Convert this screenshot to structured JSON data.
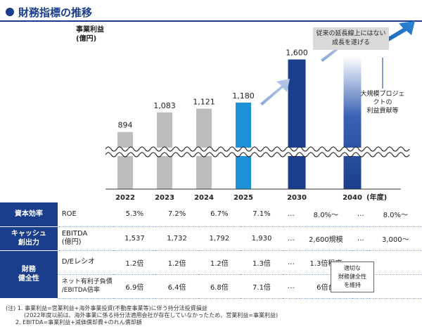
{
  "title": "財務指標の推移",
  "unit_label": [
    "事業利益",
    "(億円)"
  ],
  "note_box": [
    "従来の延長線上にはない",
    "成長を遂げる"
  ],
  "callout": [
    "大規模プロジェクトの",
    "利益貢献等"
  ],
  "axis_suffix": "(年度)",
  "chart_data": {
    "type": "bar",
    "categories": [
      "2022",
      "2023",
      "2024",
      "2025",
      "2030",
      "2040"
    ],
    "values": [
      894,
      1083,
      1121,
      1180,
      1600,
      null
    ],
    "labels": [
      "894",
      "1,083",
      "1,121",
      "1,180",
      "1,600",
      ""
    ],
    "colors": [
      "#bdbdbd",
      "#bdbdbd",
      "#bdbdbd",
      "#1e90d6",
      "#1a3e8c",
      "gradient-navy"
    ],
    "ylabel": "事業利益(億円)",
    "axis_break": true
  },
  "table": {
    "rows": [
      {
        "category": "資本効率",
        "metric": "ROE",
        "values": [
          "5.3%",
          "7.2%",
          "6.7%",
          "7.1%",
          "…",
          "8.0%〜",
          "…",
          "8.0%〜"
        ]
      },
      {
        "category": "キャッシュ\n創出力",
        "metric": "EBITDA\n(億円)",
        "values": [
          "1,537",
          "1,732",
          "1,792",
          "1,930",
          "…",
          "2,600規模",
          "…",
          "3,000〜"
        ]
      },
      {
        "category": "財務\n健全性",
        "metric": "D/Eレシオ",
        "values": [
          "1.2倍",
          "1.2倍",
          "1.2倍",
          "1.3倍",
          "…",
          "1.3倍程度",
          "…",
          ""
        ]
      },
      {
        "category": "",
        "metric": "ネット有利子負債\n/EBITDA倍率",
        "values": [
          "6.9倍",
          "6.4倍",
          "6.8倍",
          "7.1倍",
          "…",
          "6倍台",
          "…",
          ""
        ]
      }
    ],
    "health_box": [
      "適切な",
      "財務健全性",
      "を維持"
    ]
  },
  "notes": [
    "(注) 1. 事業利益=営業利益+海外事業投資(不動産事業等)に伴う持分法投資損益",
    "(2022年度以前は、海外事業に係る持分法適用会社が存在していなかったため、営業利益=事業利益)",
    "2. EBITDA=事業利益+減価償却費+のれん償却額"
  ]
}
